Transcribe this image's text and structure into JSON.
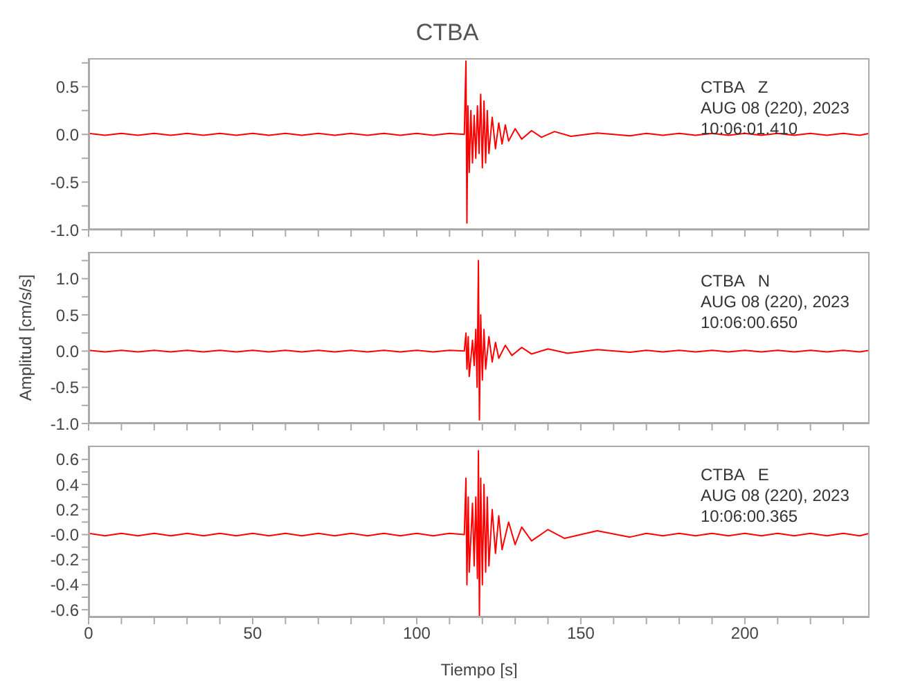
{
  "chart_data": [
    {
      "type": "line",
      "title": "CTBA",
      "annotations": [
        "CTBA   Z",
        "AUG 08 (220), 2023",
        "10:06:01.410"
      ],
      "tick_labels": "y",
      "legend": false,
      "grid": false,
      "xlim": [
        0,
        238
      ],
      "xticks": [
        0,
        {
          "value": 10,
          "label": null
        },
        {
          "value": 20,
          "label": null
        },
        {
          "value": 30,
          "label": null
        },
        {
          "value": 40,
          "label": null
        },
        50,
        {
          "value": 60,
          "label": null
        },
        {
          "value": 70,
          "label": null
        },
        {
          "value": 80,
          "label": null
        },
        {
          "value": 90,
          "label": null
        },
        100,
        {
          "value": 110,
          "label": null
        },
        {
          "value": 120,
          "label": null
        },
        {
          "value": 130,
          "label": null
        },
        {
          "value": 140,
          "label": null
        },
        150,
        {
          "value": 160,
          "label": null
        },
        {
          "value": 170,
          "label": null
        },
        {
          "value": 180,
          "label": null
        },
        {
          "value": 190,
          "label": null
        },
        200,
        {
          "value": 210,
          "label": null
        },
        {
          "value": 220,
          "label": null
        },
        {
          "value": 230,
          "label": null
        }
      ],
      "ylim": [
        -1.0,
        0.8
      ],
      "yticks": [
        {
          "value": -1,
          "label": "-1.0"
        },
        {
          "value": -0.75,
          "label": null
        },
        -0.5,
        {
          "value": -0.25,
          "label": null
        },
        {
          "value": 0,
          "label": "0.0"
        },
        {
          "value": 0.25,
          "label": null
        },
        0.5,
        {
          "value": 0.75,
          "label": null
        }
      ],
      "series": [
        {
          "color": "#ff0000",
          "x": [
            0,
            5,
            10,
            15,
            20,
            25,
            30,
            35,
            40,
            45,
            50,
            55,
            60,
            65,
            70,
            75,
            80,
            85,
            90,
            95,
            100,
            105,
            110,
            114.5,
            115,
            115.3,
            115.6,
            116,
            116.5,
            117,
            117.5,
            118,
            118.5,
            119,
            119.5,
            120,
            120.5,
            121,
            121.5,
            122,
            123,
            124,
            125,
            126,
            127,
            128,
            130,
            132,
            135,
            138,
            142,
            147,
            155,
            165,
            170,
            175,
            180,
            185,
            190,
            195,
            200,
            205,
            210,
            215,
            220,
            225,
            230,
            235,
            238
          ],
          "values": [
            0.01,
            -0.01,
            0.01,
            -0.01,
            0.01,
            -0.01,
            0.01,
            -0.01,
            0.01,
            -0.01,
            0.01,
            -0.01,
            0.01,
            -0.01,
            0.01,
            -0.01,
            0.01,
            -0.01,
            0.01,
            -0.01,
            0.01,
            -0.01,
            0.01,
            0,
            0.77,
            -0.93,
            0.3,
            -0.4,
            0.25,
            -0.3,
            0.2,
            -0.25,
            0.3,
            -0.2,
            0.42,
            -0.35,
            0.35,
            -0.3,
            0.25,
            -0.2,
            0.18,
            -0.15,
            0.12,
            -0.1,
            0.1,
            -0.07,
            0.06,
            -0.05,
            0.04,
            -0.03,
            0.03,
            -0.02,
            0.015,
            -0.015,
            0.01,
            -0.01,
            0.01,
            -0.01,
            0.01,
            -0.01,
            0.01,
            -0.01,
            0.01,
            -0.01,
            0.01,
            -0.01,
            0.01,
            -0.01,
            0.01
          ]
        }
      ]
    },
    {
      "type": "line",
      "ylabel": "Amplitud  [cm/s/s]",
      "annotations": [
        "CTBA   N",
        "AUG 08 (220), 2023",
        "10:06:00.650"
      ],
      "tick_labels": "y",
      "legend": false,
      "grid": false,
      "xlim": [
        0,
        238
      ],
      "xticks": [
        0,
        {
          "value": 10,
          "label": null
        },
        {
          "value": 20,
          "label": null
        },
        {
          "value": 30,
          "label": null
        },
        {
          "value": 40,
          "label": null
        },
        50,
        {
          "value": 60,
          "label": null
        },
        {
          "value": 70,
          "label": null
        },
        {
          "value": 80,
          "label": null
        },
        {
          "value": 90,
          "label": null
        },
        100,
        {
          "value": 110,
          "label": null
        },
        {
          "value": 120,
          "label": null
        },
        {
          "value": 130,
          "label": null
        },
        {
          "value": 140,
          "label": null
        },
        150,
        {
          "value": 160,
          "label": null
        },
        {
          "value": 170,
          "label": null
        },
        {
          "value": 180,
          "label": null
        },
        {
          "value": 190,
          "label": null
        },
        200,
        {
          "value": 210,
          "label": null
        },
        {
          "value": 220,
          "label": null
        },
        {
          "value": 230,
          "label": null
        }
      ],
      "ylim": [
        -1.0,
        1.37
      ],
      "yticks": [
        {
          "value": -1,
          "label": "-1.0"
        },
        {
          "value": -0.75,
          "label": null
        },
        -0.5,
        {
          "value": -0.25,
          "label": null
        },
        {
          "value": 0,
          "label": "0.0"
        },
        {
          "value": 0.25,
          "label": null
        },
        0.5,
        {
          "value": 0.75,
          "label": null
        },
        {
          "value": 1,
          "label": "1.0"
        },
        {
          "value": 1.25,
          "label": null
        }
      ],
      "series": [
        {
          "color": "#ff0000",
          "x": [
            0,
            5,
            10,
            15,
            20,
            25,
            30,
            35,
            40,
            45,
            50,
            55,
            60,
            65,
            70,
            75,
            80,
            85,
            90,
            95,
            100,
            105,
            110,
            114.5,
            115,
            115.3,
            115.7,
            116,
            117,
            117.5,
            118,
            118.4,
            118.8,
            119.1,
            119.5,
            120,
            120.5,
            121,
            122,
            123,
            124,
            125,
            127,
            129,
            132,
            135,
            140,
            146,
            155,
            165,
            170,
            175,
            180,
            185,
            190,
            195,
            200,
            205,
            210,
            215,
            220,
            225,
            230,
            235,
            238
          ],
          "values": [
            0.01,
            -0.01,
            0.01,
            -0.01,
            0.01,
            -0.01,
            0.01,
            -0.01,
            0.01,
            -0.01,
            0.01,
            -0.01,
            0.01,
            -0.01,
            0.01,
            -0.01,
            0.01,
            -0.01,
            0.01,
            -0.01,
            0.01,
            -0.01,
            0.01,
            0,
            0.25,
            -0.25,
            0.2,
            -0.35,
            0.15,
            -0.2,
            0.3,
            -0.5,
            1.25,
            -0.95,
            0.5,
            -0.4,
            0.3,
            -0.25,
            0.2,
            -0.15,
            0.12,
            -0.1,
            0.08,
            -0.06,
            0.05,
            -0.04,
            0.03,
            -0.03,
            0.02,
            -0.015,
            0.01,
            -0.01,
            0.01,
            -0.01,
            0.01,
            -0.01,
            0.01,
            -0.01,
            0.01,
            -0.01,
            0.01,
            -0.01,
            0.01,
            -0.01,
            0.01
          ]
        }
      ]
    },
    {
      "type": "line",
      "xlabel": "Tiempo  [s]",
      "annotations": [
        "CTBA   E",
        "AUG 08 (220), 2023",
        "10:06:00.365"
      ],
      "legend": false,
      "grid": false,
      "xlim": [
        0,
        238
      ],
      "xticks": [
        0,
        {
          "value": 10,
          "label": null
        },
        {
          "value": 20,
          "label": null
        },
        {
          "value": 30,
          "label": null
        },
        {
          "value": 40,
          "label": null
        },
        50,
        {
          "value": 60,
          "label": null
        },
        {
          "value": 70,
          "label": null
        },
        {
          "value": 80,
          "label": null
        },
        {
          "value": 90,
          "label": null
        },
        100,
        {
          "value": 110,
          "label": null
        },
        {
          "value": 120,
          "label": null
        },
        {
          "value": 130,
          "label": null
        },
        {
          "value": 140,
          "label": null
        },
        150,
        {
          "value": 160,
          "label": null
        },
        {
          "value": 170,
          "label": null
        },
        {
          "value": 180,
          "label": null
        },
        {
          "value": 190,
          "label": null
        },
        200,
        {
          "value": 210,
          "label": null
        },
        {
          "value": 220,
          "label": null
        },
        {
          "value": 230,
          "label": null
        }
      ],
      "ylim": [
        -0.66,
        0.71
      ],
      "yticks": [
        -0.6,
        {
          "value": -0.5,
          "label": null
        },
        -0.4,
        {
          "value": -0.3,
          "label": null
        },
        -0.2,
        {
          "value": -0.1,
          "label": null
        },
        {
          "value": 0,
          "label": "-0.0"
        },
        {
          "value": 0.1,
          "label": null
        },
        0.2,
        {
          "value": 0.3,
          "label": null
        },
        0.4,
        {
          "value": 0.5,
          "label": null
        },
        0.6
      ],
      "series": [
        {
          "color": "#ff0000",
          "x": [
            0,
            5,
            10,
            15,
            20,
            25,
            30,
            35,
            40,
            45,
            50,
            55,
            60,
            65,
            70,
            75,
            80,
            85,
            90,
            95,
            100,
            105,
            110,
            114.5,
            115,
            115.3,
            115.7,
            116,
            117,
            117.5,
            118,
            118.5,
            118.8,
            119.1,
            119.5,
            120,
            120.5,
            121,
            121.5,
            122,
            123,
            124,
            125,
            126,
            128,
            130,
            132,
            135,
            140,
            145,
            155,
            165,
            170,
            175,
            180,
            185,
            190,
            195,
            200,
            205,
            210,
            215,
            220,
            225,
            230,
            235,
            238
          ],
          "values": [
            0.01,
            -0.01,
            0.01,
            -0.01,
            0.01,
            -0.01,
            0.01,
            -0.01,
            0.01,
            -0.01,
            0.01,
            -0.01,
            0.01,
            -0.01,
            0.01,
            -0.01,
            0.01,
            -0.01,
            0.01,
            -0.01,
            0.01,
            -0.01,
            0.01,
            0,
            0.45,
            -0.4,
            0.3,
            -0.3,
            0.25,
            -0.25,
            0.3,
            -0.35,
            0.67,
            -0.65,
            0.45,
            -0.4,
            0.4,
            -0.3,
            0.3,
            -0.25,
            0.2,
            -0.15,
            0.15,
            -0.12,
            0.1,
            -0.08,
            0.06,
            -0.05,
            0.04,
            -0.03,
            0.03,
            -0.02,
            0.01,
            -0.01,
            0.01,
            -0.01,
            0.01,
            -0.01,
            0.01,
            -0.01,
            0.01,
            -0.01,
            0.01,
            -0.01,
            0.01,
            -0.01,
            0.01
          ]
        }
      ]
    }
  ]
}
